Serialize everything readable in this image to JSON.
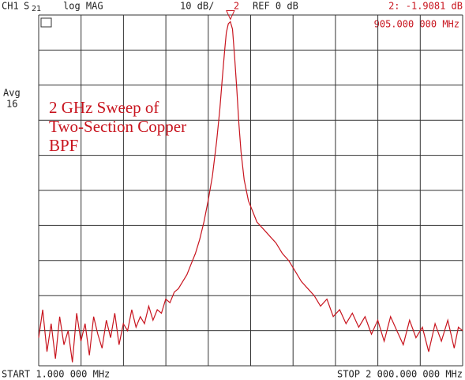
{
  "chart_data": {
    "type": "line",
    "header": {
      "channel": "CH1",
      "param": "S",
      "param_sub": "21",
      "format": "log MAG",
      "scale": "10 dB/",
      "ref": "REF 0 dB"
    },
    "side": {
      "avg": "Avg",
      "avg_count": "16"
    },
    "title": [
      "2 GHz Sweep of",
      "Two-Section Copper",
      "BPF"
    ],
    "start_label": "START  1.000 000 MHz",
    "stop_label": "STOP 2 000.000 000 MHz",
    "marker": {
      "label": "2",
      "x": 905,
      "y": -1.9081,
      "readout": "2: -1.9081 dB",
      "freq": "905.000 000 MHz"
    },
    "xlim": [
      1,
      2000
    ],
    "ylim": [
      -100,
      0
    ],
    "xticks": [
      1,
      200.9,
      400.8,
      600.7,
      800.6,
      1000.5,
      1200.4,
      1400.3,
      1600.2,
      1800.1,
      2000
    ],
    "yticks": [
      -100,
      -90,
      -80,
      -70,
      -60,
      -50,
      -40,
      -30,
      -20,
      -10,
      0
    ],
    "grid": true,
    "x": [
      1,
      20,
      40,
      60,
      80,
      100,
      120,
      140,
      160,
      180,
      200,
      220,
      240,
      260,
      280,
      300,
      320,
      340,
      360,
      380,
      400,
      420,
      440,
      460,
      480,
      500,
      520,
      540,
      560,
      580,
      600,
      620,
      640,
      660,
      680,
      700,
      720,
      740,
      760,
      780,
      800,
      820,
      840,
      855,
      867,
      878,
      886,
      895,
      905,
      915,
      925,
      935,
      945,
      955,
      970,
      990,
      1010,
      1030,
      1060,
      1090,
      1120,
      1150,
      1180,
      1210,
      1240,
      1270,
      1300,
      1330,
      1360,
      1390,
      1420,
      1450,
      1480,
      1510,
      1540,
      1570,
      1600,
      1630,
      1660,
      1690,
      1720,
      1750,
      1780,
      1810,
      1840,
      1870,
      1900,
      1930,
      1960,
      1980,
      2000
    ],
    "series": [
      {
        "name": "S21",
        "color": "#c8141e",
        "values": [
          -92,
          -84,
          -96,
          -88,
          -98,
          -86,
          -94,
          -90,
          -99,
          -85,
          -93,
          -88,
          -97,
          -86,
          -91,
          -95,
          -87,
          -92,
          -85,
          -94,
          -88,
          -90,
          -84,
          -89,
          -86,
          -88,
          -83,
          -87,
          -84,
          -85,
          -81,
          -82,
          -79,
          -78,
          -76,
          -74,
          -71,
          -68,
          -64,
          -59,
          -53,
          -46,
          -36,
          -27,
          -18,
          -10,
          -5,
          -2.5,
          -1.9081,
          -4,
          -12,
          -21,
          -31,
          -39,
          -47,
          -53,
          -56,
          -59,
          -61,
          -63,
          -65,
          -68,
          -70,
          -73,
          -76,
          -78,
          -80,
          -83,
          -81,
          -86,
          -84,
          -88,
          -85,
          -89,
          -86,
          -91,
          -87,
          -93,
          -86,
          -90,
          -94,
          -87,
          -92,
          -89,
          -96,
          -88,
          -93,
          -87,
          -95,
          -89,
          -90
        ]
      }
    ]
  }
}
